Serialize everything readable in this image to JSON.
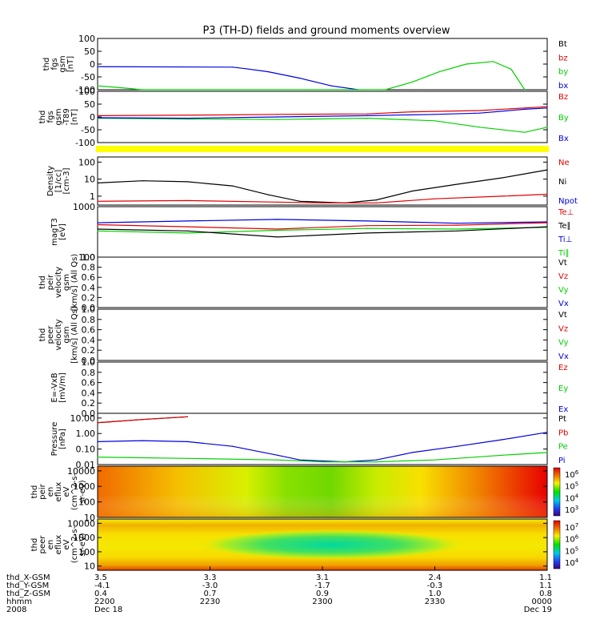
{
  "title": "P3 (TH-D) fields and ground moments overview",
  "colors": {
    "black": "#000000",
    "red": "#e00000",
    "green": "#00d000",
    "blue": "#0000e0",
    "yellow": "#ffff00"
  },
  "chart_data": [
    {
      "type": "line",
      "panel": "fgs",
      "ylabel_lines": [
        "thd",
        "fgs",
        "gsm",
        "[nT]"
      ],
      "ylim": [
        -100,
        100
      ],
      "yticks": [
        "100",
        "50",
        "0",
        "-50",
        "-100"
      ],
      "legend": [
        {
          "name": "Bt",
          "color": "black"
        },
        {
          "name": "bz",
          "color": "red"
        },
        {
          "name": "by",
          "color": "green"
        },
        {
          "name": "bx",
          "color": "blue"
        }
      ],
      "series": [
        {
          "name": "bx",
          "color": "blue",
          "x": [
            0,
            0.3,
            0.33,
            0.38,
            0.45,
            0.52,
            0.58
          ],
          "y": [
            -10,
            -12,
            -18,
            -30,
            -55,
            -85,
            -100
          ]
        },
        {
          "name": "by",
          "color": "green",
          "x": [
            0,
            0.05,
            0.1,
            0.64,
            0.7,
            0.76,
            0.82,
            0.88,
            0.92,
            0.95
          ],
          "y": [
            -85,
            -92,
            -100,
            -100,
            -70,
            -30,
            0,
            10,
            -20,
            -100
          ]
        }
      ]
    },
    {
      "type": "line",
      "panel": "fgs-t89",
      "ylabel_lines": [
        "thd",
        "fgs",
        "gsm",
        "-T89",
        "[nT]"
      ],
      "ylim": [
        -100,
        100
      ],
      "yticks": [
        "100",
        "50",
        "0",
        "-50",
        "-100"
      ],
      "legend": [
        {
          "name": "Bz",
          "color": "red"
        },
        {
          "name": "By",
          "color": "green"
        },
        {
          "name": "Bx",
          "color": "blue"
        }
      ],
      "series": [
        {
          "name": "Bz",
          "color": "red",
          "x": [
            0,
            0.3,
            0.4,
            0.6,
            0.7,
            0.85,
            1.0
          ],
          "y": [
            5,
            8,
            10,
            12,
            20,
            25,
            40
          ]
        },
        {
          "name": "By",
          "color": "green",
          "x": [
            0,
            0.2,
            0.4,
            0.6,
            0.75,
            0.85,
            0.95,
            1.0
          ],
          "y": [
            -5,
            -8,
            -10,
            -5,
            -15,
            -40,
            -60,
            -40
          ]
        },
        {
          "name": "Bx",
          "color": "blue",
          "x": [
            0,
            0.2,
            0.4,
            0.6,
            0.75,
            0.85,
            0.95,
            1.0
          ],
          "y": [
            -3,
            -5,
            0,
            5,
            10,
            15,
            30,
            35
          ]
        }
      ]
    },
    {
      "type": "line",
      "panel": "density",
      "ylabel_lines": [
        "Density",
        "[1/cc]",
        "[cm-3]"
      ],
      "log": true,
      "ylim": [
        0.3,
        200
      ],
      "yticks": [
        "100",
        "10",
        "1"
      ],
      "legend": [
        {
          "name": "Ne",
          "color": "red"
        },
        {
          "name": "Ni",
          "color": "black"
        },
        {
          "name": "Npot",
          "color": "blue"
        }
      ],
      "series": [
        {
          "name": "Ni",
          "color": "black",
          "x": [
            0,
            0.1,
            0.2,
            0.3,
            0.38,
            0.45,
            0.55,
            0.62,
            0.7,
            0.8,
            0.9,
            1.0
          ],
          "y": [
            6,
            8,
            7,
            4,
            1.2,
            0.5,
            0.4,
            0.6,
            2,
            5,
            12,
            35
          ]
        },
        {
          "name": "Ne",
          "color": "red",
          "x": [
            0,
            0.2,
            0.4,
            0.5,
            0.62,
            0.75,
            0.9,
            1.0
          ],
          "y": [
            0.5,
            0.55,
            0.45,
            0.4,
            0.4,
            0.7,
            1.0,
            1.3
          ]
        }
      ]
    },
    {
      "type": "line",
      "panel": "temperature",
      "ylabel_lines": [
        "magT3",
        "[eV]"
      ],
      "log": true,
      "ylim": [
        100,
        1000
      ],
      "yticks": [
        "1000",
        "100"
      ],
      "legend": [
        {
          "name": "Te⊥",
          "color": "red"
        },
        {
          "name": "Te∥",
          "color": "black"
        },
        {
          "name": "Ti⊥",
          "color": "blue"
        },
        {
          "name": "Ti∥",
          "color": "green"
        }
      ],
      "series": [
        {
          "name": "Ti⊥",
          "color": "blue",
          "x": [
            0,
            0.2,
            0.4,
            0.6,
            0.8,
            1.0
          ],
          "y": [
            480,
            520,
            560,
            520,
            470,
            500
          ]
        },
        {
          "name": "Te⊥",
          "color": "red",
          "x": [
            0,
            0.2,
            0.4,
            0.6,
            0.8,
            1.0
          ],
          "y": [
            440,
            400,
            360,
            420,
            430,
            480
          ]
        },
        {
          "name": "Ti∥",
          "color": "green",
          "x": [
            0,
            0.2,
            0.4,
            0.6,
            0.8,
            1.0
          ],
          "y": [
            330,
            300,
            340,
            370,
            360,
            390
          ]
        },
        {
          "name": "Te∥",
          "color": "black",
          "x": [
            0,
            0.2,
            0.4,
            0.6,
            0.8,
            1.0
          ],
          "y": [
            360,
            330,
            250,
            300,
            330,
            400
          ]
        }
      ]
    },
    {
      "type": "line",
      "panel": "peir-velocity",
      "ylabel_lines": [
        "thd",
        "peir",
        "velocity",
        "gsm",
        "[km/s] (All Qs)"
      ],
      "ylim": [
        0,
        1
      ],
      "yticks": [
        "1.0",
        "0.8",
        "0.6",
        "0.4",
        "0.2",
        "0.0"
      ],
      "legend": [
        {
          "name": "Vt",
          "color": "black"
        },
        {
          "name": "Vz",
          "color": "red"
        },
        {
          "name": "Vy",
          "color": "green"
        },
        {
          "name": "Vx",
          "color": "blue"
        }
      ],
      "series": []
    },
    {
      "type": "line",
      "panel": "peer-velocity",
      "ylabel_lines": [
        "thd",
        "peer",
        "velocity",
        "gsm",
        "[km/s] (All Qs)"
      ],
      "ylim": [
        0,
        1
      ],
      "yticks": [
        "1.0",
        "0.8",
        "0.6",
        "0.4",
        "0.2",
        "0.0"
      ],
      "legend": [
        {
          "name": "Vt",
          "color": "black"
        },
        {
          "name": "Vz",
          "color": "red"
        },
        {
          "name": "Vy",
          "color": "green"
        },
        {
          "name": "Vx",
          "color": "blue"
        }
      ],
      "series": []
    },
    {
      "type": "line",
      "panel": "efield",
      "ylabel_lines": [
        "E=-VxB",
        "[mV/m]"
      ],
      "ylim": [
        0,
        1
      ],
      "yticks": [
        "1.0",
        "0.8",
        "0.6",
        "0.4",
        "0.2",
        "0.0"
      ],
      "legend": [
        {
          "name": "Ez",
          "color": "red"
        },
        {
          "name": "Ey",
          "color": "green"
        },
        {
          "name": "Ex",
          "color": "blue"
        }
      ],
      "series": []
    },
    {
      "type": "line",
      "panel": "pressure",
      "ylabel_lines": [
        "Pressure",
        "[nPa]"
      ],
      "log": true,
      "ylim": [
        0.01,
        20
      ],
      "yticks": [
        "10.00",
        "1.00",
        "0.10",
        "0.01"
      ],
      "legend": [
        {
          "name": "Pt",
          "color": "black"
        },
        {
          "name": "Pb",
          "color": "red"
        },
        {
          "name": "Pe",
          "color": "green"
        },
        {
          "name": "Pi",
          "color": "blue"
        }
      ],
      "series": [
        {
          "name": "Pt",
          "color": "black",
          "x": [
            0,
            0.1,
            0.2
          ],
          "y": [
            5,
            8,
            12
          ]
        },
        {
          "name": "Pb",
          "color": "red",
          "x": [
            0,
            0.1,
            0.2
          ],
          "y": [
            5,
            8,
            12
          ]
        },
        {
          "name": "Pi",
          "color": "blue",
          "x": [
            0,
            0.1,
            0.2,
            0.3,
            0.4,
            0.45,
            0.55,
            0.62,
            0.7,
            0.8,
            0.9,
            1.0
          ],
          "y": [
            0.3,
            0.35,
            0.3,
            0.15,
            0.04,
            0.02,
            0.015,
            0.02,
            0.06,
            0.15,
            0.4,
            1.2
          ]
        },
        {
          "name": "Pe",
          "color": "green",
          "x": [
            0,
            0.2,
            0.4,
            0.5,
            0.62,
            0.75,
            0.9,
            1.0
          ],
          "y": [
            0.03,
            0.025,
            0.02,
            0.015,
            0.015,
            0.02,
            0.04,
            0.06
          ]
        }
      ]
    },
    {
      "type": "heatmap",
      "panel": "peir-spectrogram",
      "ylabel_lines": [
        "thd",
        "peir",
        "en",
        "eflux",
        "eV",
        "(cm^2-s-",
        "sr-eV)"
      ],
      "log": true,
      "ylim": [
        10,
        20000
      ],
      "yticks": [
        "10000",
        "1000",
        "100",
        "10"
      ],
      "colorbar_ticks": [
        "10^6",
        "10^5",
        "10^4",
        "10^3"
      ]
    },
    {
      "type": "heatmap",
      "panel": "peer-spectrogram",
      "ylabel_lines": [
        "thd",
        "peer",
        "en",
        "eflux",
        "eV",
        "(cm^2-s-",
        "sr-eV)"
      ],
      "log": true,
      "ylim": [
        5,
        20000
      ],
      "yticks": [
        "10000",
        "1000",
        "100",
        "10"
      ],
      "colorbar_ticks": [
        "10^7",
        "10^6",
        "10^5",
        "10^4"
      ]
    }
  ],
  "x_axis": {
    "row_labels": [
      "thd_X-GSM",
      "thd_Y-GSM",
      "thd_Z-GSM",
      "hhmm",
      "2008"
    ],
    "ticks": [
      {
        "x": 0.0,
        "values": [
          "3.5",
          "-4.1",
          "0.4",
          "2200",
          "Dec 18"
        ]
      },
      {
        "x": 0.25,
        "values": [
          "3.3",
          "-3.0",
          "0.7",
          "2230",
          ""
        ]
      },
      {
        "x": 0.5,
        "values": [
          "3.1",
          "-1.7",
          "0.9",
          "2300",
          ""
        ]
      },
      {
        "x": 0.75,
        "values": [
          "2.4",
          "-0.3",
          "1.0",
          "2330",
          ""
        ]
      },
      {
        "x": 1.0,
        "values": [
          "1.1",
          "1.1",
          "0.8",
          "0000",
          "Dec 19"
        ]
      }
    ]
  }
}
